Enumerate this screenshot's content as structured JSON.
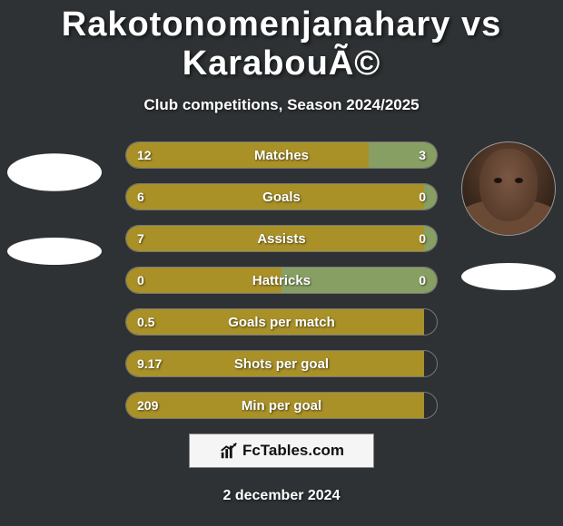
{
  "title": "Rakotonomenjanahary vs KarabouÃ©",
  "subtitle": "Club competitions, Season 2024/2025",
  "date": "2 december 2024",
  "brand": "FcTables.com",
  "colors": {
    "left_fill": "#a99128",
    "right_fill": "#889f64",
    "background": "#2e3234",
    "bar_border": "#777777",
    "text": "#ffffff"
  },
  "players": {
    "left": {
      "has_photo": false
    },
    "right": {
      "has_photo": true
    }
  },
  "stats": [
    {
      "label": "Matches",
      "left_value": "12",
      "right_value": "3",
      "left_pct": 78,
      "right_pct": 22
    },
    {
      "label": "Goals",
      "left_value": "6",
      "right_value": "0",
      "left_pct": 96,
      "right_pct": 4
    },
    {
      "label": "Assists",
      "left_value": "7",
      "right_value": "0",
      "left_pct": 96,
      "right_pct": 4
    },
    {
      "label": "Hattricks",
      "left_value": "0",
      "right_value": "0",
      "left_pct": 50,
      "right_pct": 50
    },
    {
      "label": "Goals per match",
      "left_value": "0.5",
      "right_value": "",
      "left_pct": 96,
      "right_pct": 0
    },
    {
      "label": "Shots per goal",
      "left_value": "9.17",
      "right_value": "",
      "left_pct": 96,
      "right_pct": 0
    },
    {
      "label": "Min per goal",
      "left_value": "209",
      "right_value": "",
      "left_pct": 96,
      "right_pct": 0
    }
  ]
}
